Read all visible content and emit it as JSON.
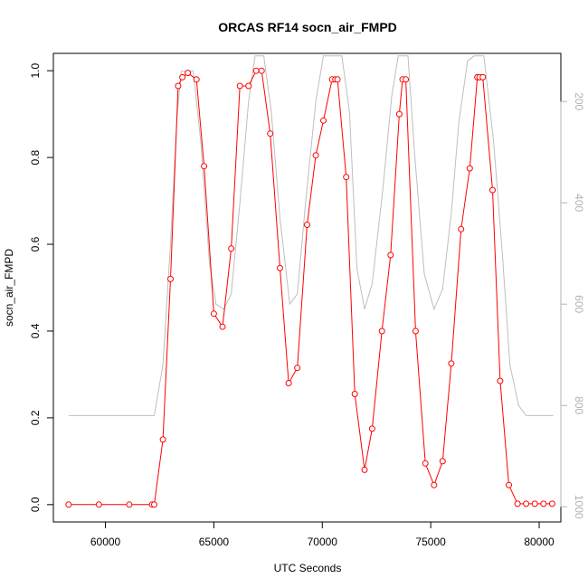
{
  "chart_data": {
    "type": "line",
    "title": "ORCAS RF14 socn_air_FMPD",
    "xlabel": "UTC Seconds",
    "ylabel": "socn_air_FMPD",
    "xlim": [
      57600,
      81000
    ],
    "ylim": [
      -0.04,
      1.04
    ],
    "xticks": [
      60000,
      65000,
      70000,
      75000,
      80000
    ],
    "yticks": [
      0.0,
      0.2,
      0.4,
      0.6,
      0.8,
      1.0
    ],
    "y2lim": [
      1030,
      105
    ],
    "y2ticks": [
      200,
      400,
      600,
      800,
      1000
    ],
    "colors": {
      "main": "#ff0000",
      "secondary": "#bebebe"
    },
    "series": [
      {
        "axis": "left",
        "markers": true,
        "x": [
          58300,
          59700,
          61100,
          62150,
          62250,
          62650,
          63000,
          63350,
          63550,
          63800,
          64200,
          64550,
          65000,
          65400,
          65800,
          66200,
          66600,
          66950,
          67200,
          67600,
          68050,
          68450,
          68850,
          69300,
          69700,
          70050,
          70450,
          70600,
          70700,
          71100,
          71500,
          71950,
          72300,
          72750,
          73150,
          73550,
          73700,
          73850,
          74300,
          74750,
          75150,
          75550,
          75950,
          76400,
          76800,
          77150,
          77250,
          77400,
          77850,
          78200,
          78600,
          79000,
          79400,
          79800,
          80200,
          80600
        ],
        "values": [
          0.0,
          0.0,
          0.0,
          0.0,
          0.0,
          0.15,
          0.52,
          0.965,
          0.985,
          0.995,
          0.98,
          0.78,
          0.44,
          0.41,
          0.59,
          0.965,
          0.965,
          1.0,
          1.0,
          0.855,
          0.545,
          0.28,
          0.315,
          0.645,
          0.805,
          0.885,
          0.98,
          0.98,
          0.98,
          0.755,
          0.255,
          0.08,
          0.175,
          0.4,
          0.575,
          0.9,
          0.98,
          0.98,
          0.4,
          0.095,
          0.045,
          0.1,
          0.325,
          0.635,
          0.775,
          0.985,
          0.985,
          0.985,
          0.725,
          0.285,
          0.045,
          0.002,
          0.002,
          0.002,
          0.002,
          0.002
        ]
      },
      {
        "axis": "right",
        "markers": false,
        "x": [
          58300,
          59000,
          60000,
          61000,
          62000,
          62250,
          62650,
          63000,
          63300,
          63500,
          63850,
          64050,
          64400,
          64800,
          65100,
          65450,
          65800,
          66200,
          66600,
          66900,
          67050,
          67300,
          67650,
          68050,
          68500,
          68850,
          69250,
          69700,
          70050,
          70350,
          70900,
          71250,
          71600,
          71950,
          72300,
          72800,
          73200,
          73500,
          73950,
          74250,
          74700,
          75150,
          75550,
          75950,
          76300,
          76700,
          77000,
          77450,
          77900,
          78300,
          78650,
          79050,
          79400,
          79800,
          80200,
          80650
        ],
        "values": [
          820,
          820,
          820,
          820,
          820,
          820,
          720,
          480,
          230,
          140,
          140,
          140,
          280,
          520,
          600,
          610,
          580,
          400,
          200,
          110,
          110,
          110,
          220,
          430,
          600,
          580,
          390,
          200,
          110,
          110,
          110,
          220,
          530,
          610,
          560,
          370,
          190,
          110,
          110,
          300,
          540,
          610,
          570,
          420,
          240,
          120,
          110,
          110,
          280,
          500,
          720,
          800,
          820,
          820,
          820,
          820
        ]
      }
    ]
  }
}
